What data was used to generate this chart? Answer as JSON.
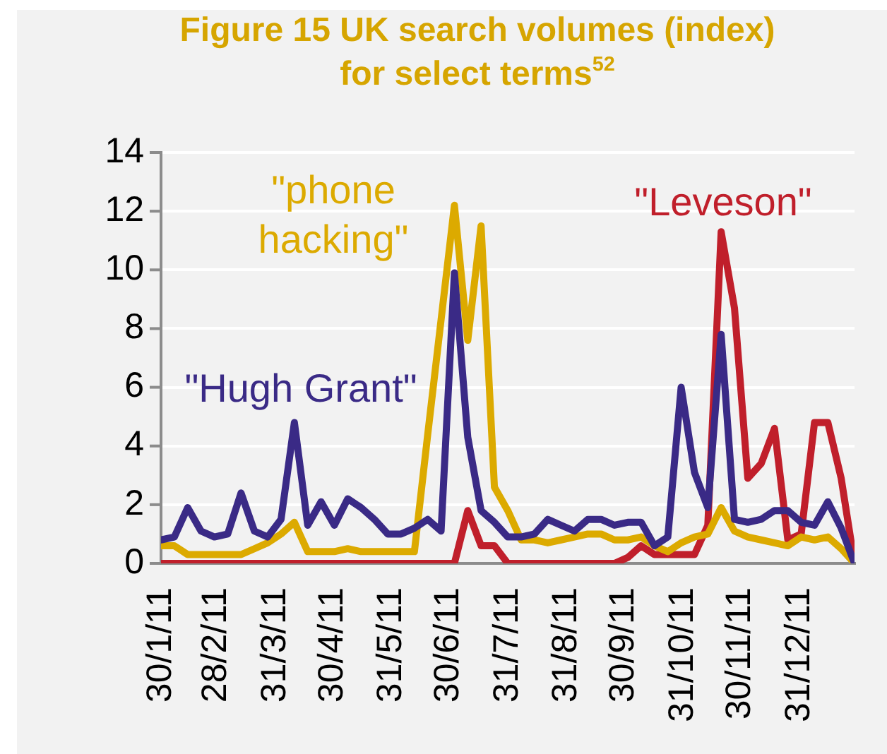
{
  "chart_data": {
    "type": "line",
    "title": "Figure 15 UK search volumes (index) for select terms$^{52}$",
    "x": [
      "2011-01-30",
      "2011-02-06",
      "2011-02-13",
      "2011-02-20",
      "2011-02-27",
      "2011-03-06",
      "2011-03-13",
      "2011-03-20",
      "2011-03-27",
      "2011-04-03",
      "2011-04-10",
      "2011-04-17",
      "2011-04-24",
      "2011-05-01",
      "2011-05-08",
      "2011-05-15",
      "2011-05-22",
      "2011-05-29",
      "2011-06-05",
      "2011-06-12",
      "2011-06-19",
      "2011-06-26",
      "2011-07-03",
      "2011-07-10",
      "2011-07-17",
      "2011-07-24",
      "2011-07-31",
      "2011-08-07",
      "2011-08-14",
      "2011-08-21",
      "2011-08-28",
      "2011-09-04",
      "2011-09-11",
      "2011-09-18",
      "2011-09-25",
      "2011-10-02",
      "2011-10-09",
      "2011-10-16",
      "2011-10-23",
      "2011-10-30",
      "2011-11-06",
      "2011-11-13",
      "2011-11-20",
      "2011-11-27",
      "2011-12-04",
      "2011-12-11",
      "2011-12-18",
      "2011-12-25",
      "2012-01-01",
      "2012-01-08",
      "2012-01-15",
      "2012-01-22",
      "2012-01-29"
    ],
    "series": [
      {
        "name": "\"Hugh Grant\"",
        "color": "#3a2a86",
        "values": [
          0.8,
          0.9,
          1.9,
          1.1,
          0.9,
          1.0,
          2.4,
          1.1,
          0.9,
          1.5,
          4.8,
          1.3,
          2.1,
          1.3,
          2.2,
          1.9,
          1.5,
          1.0,
          1.0,
          1.2,
          1.5,
          1.1,
          9.9,
          4.3,
          1.8,
          1.4,
          0.9,
          0.9,
          1.0,
          1.5,
          1.3,
          1.1,
          1.5,
          1.5,
          1.3,
          1.4,
          1.4,
          0.6,
          0.9,
          6.0,
          3.1,
          1.9,
          7.8,
          1.5,
          1.4,
          1.5,
          1.8,
          1.8,
          1.4,
          1.3,
          2.1,
          1.2,
          0
        ]
      },
      {
        "name": "\"phone hacking\"",
        "color": "#dcaa00",
        "values": [
          0.6,
          0.6,
          0.3,
          0.3,
          0.3,
          0.3,
          0.3,
          0.5,
          0.7,
          1.0,
          1.4,
          0.4,
          0.4,
          0.4,
          0.5,
          0.4,
          0.4,
          0.4,
          0.4,
          0.4,
          4.4,
          8.3,
          12.2,
          7.6,
          11.5,
          2.6,
          1.8,
          0.8,
          0.8,
          0.7,
          0.8,
          0.9,
          1.0,
          1.0,
          0.8,
          0.8,
          0.9,
          0.6,
          0.4,
          0.7,
          0.9,
          1.0,
          1.9,
          1.1,
          0.9,
          0.8,
          0.7,
          0.6,
          0.9,
          0.8,
          0.9,
          0.5,
          0
        ]
      },
      {
        "name": "\"Leveson\"",
        "color": "#c01f2b",
        "values": [
          0,
          0,
          0,
          0,
          0,
          0,
          0,
          0,
          0,
          0,
          0,
          0,
          0,
          0,
          0,
          0,
          0,
          0,
          0,
          0,
          0,
          0,
          0,
          1.8,
          0.6,
          0.6,
          0,
          0,
          0,
          0,
          0,
          0,
          0,
          0,
          0,
          0.2,
          0.6,
          0.3,
          0.3,
          0.3,
          0.3,
          1.3,
          11.3,
          8.7,
          2.9,
          3.4,
          4.6,
          0.8,
          1.0,
          4.8,
          4.8,
          2.9,
          0
        ]
      }
    ],
    "xlim": [
      "2011-01-30",
      "2012-01-29"
    ],
    "xticks": [
      {
        "value": "2011-01-30",
        "label": "30/1/11"
      },
      {
        "value": "2011-02-28",
        "label": "28/2/11"
      },
      {
        "value": "2011-03-31",
        "label": "31/3/11"
      },
      {
        "value": "2011-04-30",
        "label": "30/4/11"
      },
      {
        "value": "2011-05-31",
        "label": "31/5/11"
      },
      {
        "value": "2011-06-30",
        "label": "30/6/11"
      },
      {
        "value": "2011-07-31",
        "label": "31/7/11"
      },
      {
        "value": "2011-08-31",
        "label": "31/8/11"
      },
      {
        "value": "2011-09-30",
        "label": "30/9/11"
      },
      {
        "value": "2011-10-31",
        "label": "31/10/11"
      },
      {
        "value": "2011-11-30",
        "label": "30/11/11"
      },
      {
        "value": "2011-12-31",
        "label": "31/12/11"
      }
    ],
    "ylim": [
      0,
      14
    ],
    "yticks": [
      0,
      2,
      4,
      6,
      8,
      10,
      12,
      14
    ],
    "grid": "y",
    "legend": false,
    "marker": "none",
    "line_style": "solid"
  }
}
